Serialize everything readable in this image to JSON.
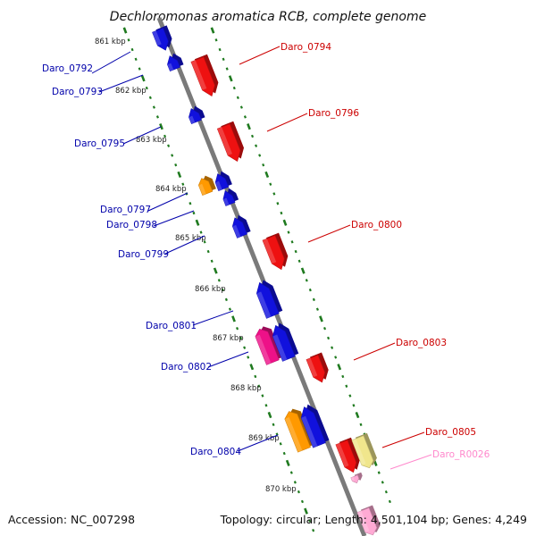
{
  "title": "Dechloromonas aromatica RCB, complete genome",
  "footer": {
    "accession": "Accession: NC_007298",
    "summary": "Topology: circular; Length: 4,501,104 bp; Genes: 4,249"
  },
  "colors": {
    "backbone": "#8c8c8c",
    "tick": "#1f7a1f",
    "plus_label": "#cc0000",
    "minus_label": "#0000aa",
    "rna_label": "#ff88cc",
    "red": "#ee1111",
    "blue": "#1111dd",
    "orange": "#ff9900",
    "magenta": "#ee1188",
    "yellow": "#f0e68c",
    "pink": "#ffaad4"
  },
  "kbp_labels": [
    "861 kbp",
    "862 kbp",
    "863 kbp",
    "864 kbp",
    "865 kbp",
    "866 kbp",
    "867 kbp",
    "868 kbp",
    "869 kbp",
    "870 kbp"
  ],
  "labels": {
    "Daro_0792": "Daro_0792",
    "Daro_0793": "Daro_0793",
    "Daro_0794": "Daro_0794",
    "Daro_0795": "Daro_0795",
    "Daro_0796": "Daro_0796",
    "Daro_0797": "Daro_0797",
    "Daro_0798": "Daro_0798",
    "Daro_0799": "Daro_0799",
    "Daro_0800": "Daro_0800",
    "Daro_0801": "Daro_0801",
    "Daro_0802": "Daro_0802",
    "Daro_0803": "Daro_0803",
    "Daro_0804": "Daro_0804",
    "Daro_0805": "Daro_0805",
    "Daro_R0026": "Daro_R0026"
  }
}
